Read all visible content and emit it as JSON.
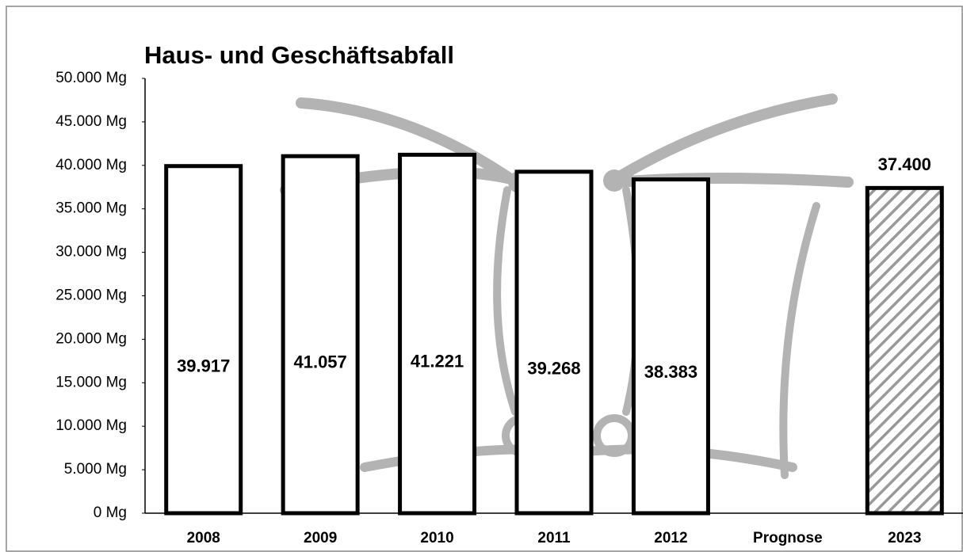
{
  "chart_data": {
    "type": "bar",
    "title": "Haus- und Geschäftsabfall",
    "categories": [
      "2008",
      "2009",
      "2010",
      "2011",
      "2012",
      "Prognose",
      "2023"
    ],
    "values": [
      39917,
      41057,
      41221,
      39268,
      38383,
      null,
      37400
    ],
    "value_labels": [
      "39.917",
      "41.057",
      "41.221",
      "39.268",
      "38.383",
      null,
      "37.400"
    ],
    "hatched": [
      false,
      false,
      false,
      false,
      false,
      false,
      true
    ],
    "color": "#ffffff",
    "ylim": [
      0,
      50000
    ],
    "yticks": [
      {
        "value": 0,
        "label": "0 Mg"
      },
      {
        "value": 5000,
        "label": "5.000 Mg"
      },
      {
        "value": 10000,
        "label": "10.000 Mg"
      },
      {
        "value": 15000,
        "label": "15.000 Mg"
      },
      {
        "value": 20000,
        "label": "20.000 Mg"
      },
      {
        "value": 25000,
        "label": "25.000 Mg"
      },
      {
        "value": 30000,
        "label": "30.000 Mg"
      },
      {
        "value": 35000,
        "label": "35.000 Mg"
      },
      {
        "value": 40000,
        "label": "40.000 Mg"
      },
      {
        "value": 45000,
        "label": "45.000 Mg"
      },
      {
        "value": 50000,
        "label": "50.000 Mg"
      }
    ],
    "grid": false
  }
}
